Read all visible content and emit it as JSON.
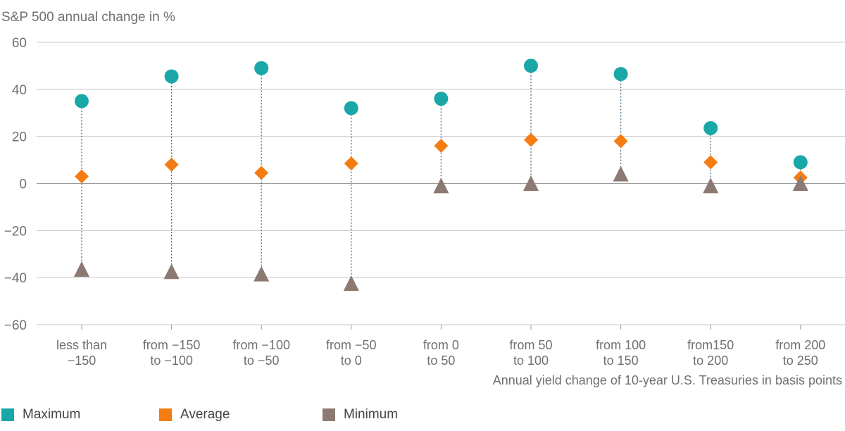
{
  "chart_data": {
    "type": "scatter",
    "ylabel": "S&P 500 annual change in %",
    "xlabel": "Annual yield change of 10-year U.S. Treasuries in basis points",
    "ylim": [
      -60,
      60
    ],
    "yticks": [
      60,
      40,
      20,
      0,
      -20,
      -40,
      -60
    ],
    "ytick_labels": [
      "60",
      "40",
      "20",
      "0",
      "−20",
      "−40",
      "−60"
    ],
    "categories": [
      [
        "less than",
        "−150"
      ],
      [
        "from −150",
        "to −100"
      ],
      [
        "from −100",
        "to −50"
      ],
      [
        "from −50",
        "to 0"
      ],
      [
        "from 0",
        "to 50"
      ],
      [
        "from 50",
        "to 100"
      ],
      [
        "from 100",
        "to 150"
      ],
      [
        "from150",
        "to 200"
      ],
      [
        "from 200",
        "to 250"
      ]
    ],
    "series": [
      {
        "name": "Maximum",
        "marker": "circle",
        "color": "#1aa7a8",
        "values": [
          35,
          45.5,
          49,
          32,
          36,
          50,
          46.5,
          23.5,
          9
        ]
      },
      {
        "name": "Average",
        "marker": "diamond",
        "color": "#f47c12",
        "values": [
          3,
          8,
          4.5,
          8.5,
          16,
          18.5,
          18,
          9,
          2.5
        ]
      },
      {
        "name": "Minimum",
        "marker": "triangle",
        "color": "#8c7a72",
        "values": [
          -37,
          -38,
          -39,
          -43,
          -1.5,
          -0.5,
          3.5,
          -1.5,
          -0.5
        ]
      }
    ],
    "grid": true,
    "legend_position": "bottom-left"
  }
}
